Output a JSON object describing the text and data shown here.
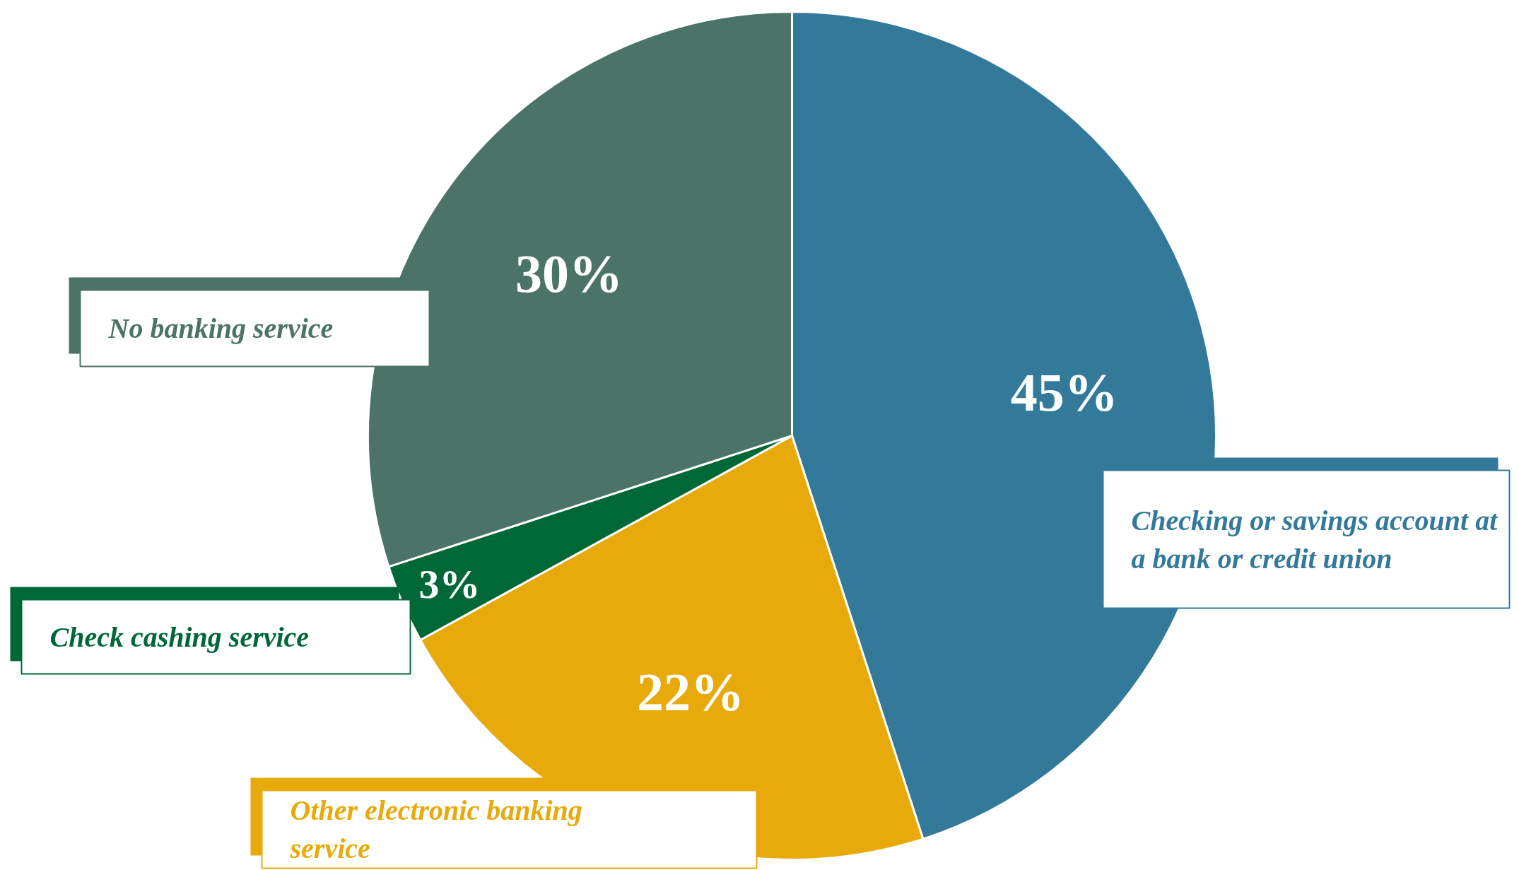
{
  "chart_data": {
    "type": "pie",
    "categories": [
      "Checking or savings account at a bank or credit union",
      "Other electronic banking service",
      "Check cashing service",
      "No banking service"
    ],
    "values": [
      45,
      22,
      3,
      30
    ],
    "colors": [
      "#337a9a",
      "#e8aa0a",
      "#006837",
      "#4b7367"
    ],
    "value_labels": [
      "45%",
      "22%",
      "3%",
      "30%"
    ]
  }
}
